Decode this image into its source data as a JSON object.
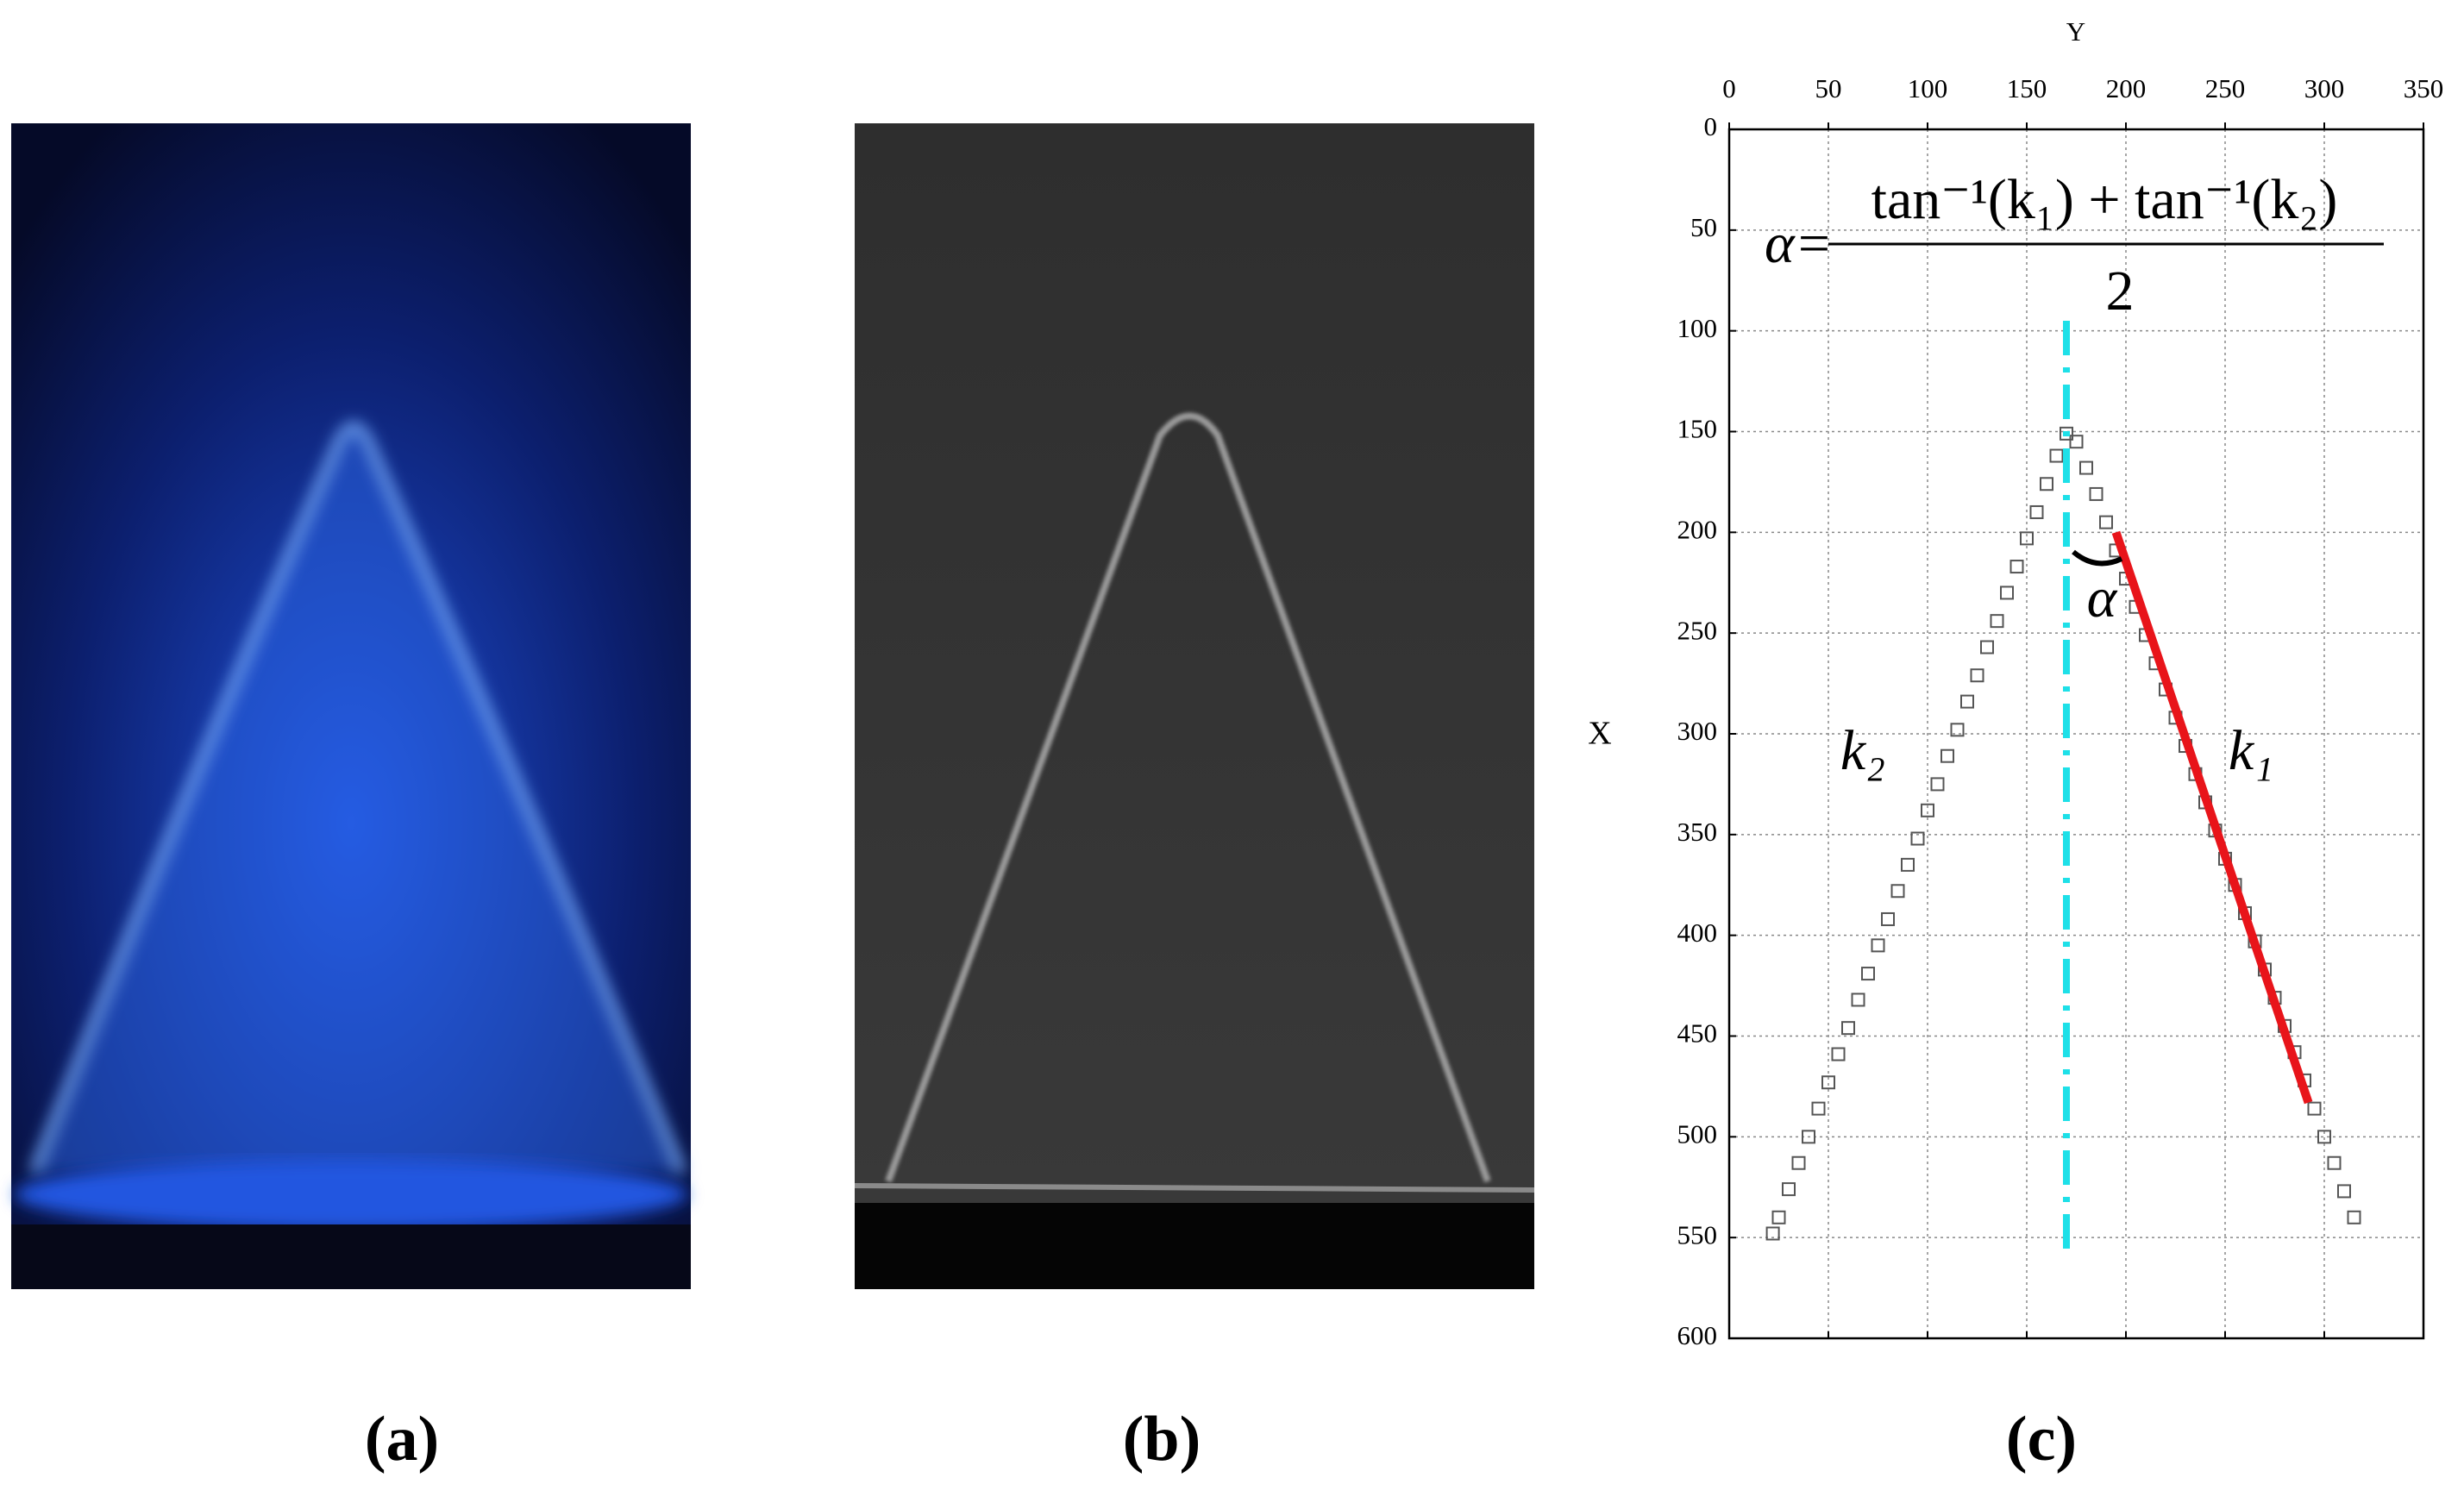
{
  "panel_labels": [
    "(a)",
    "(b)",
    "(c)"
  ],
  "chart_data": {
    "type": "scatter",
    "xlabel": "Y",
    "ylabel": "X",
    "formula": {
      "lhs": "α=",
      "numerator": "tan⁻¹(k₁) + tan⁻¹(k₂)",
      "denominator": "2"
    },
    "annotations": [
      "α",
      "k₂",
      "k₁"
    ],
    "xlim": [
      0,
      350
    ],
    "xticks": [
      0,
      50,
      100,
      150,
      200,
      250,
      300,
      350
    ],
    "ylim": [
      0,
      600
    ],
    "yticks": [
      0,
      50,
      100,
      150,
      200,
      250,
      300,
      350,
      400,
      450,
      500,
      550,
      600
    ],
    "y_inverted": true,
    "x_axis_top": true,
    "grid": true,
    "series": [
      {
        "mode": "markers",
        "marker": "square",
        "color": "#555555",
        "x": [
          22,
          25,
          30,
          35,
          40,
          45,
          50,
          55,
          60,
          65,
          70,
          75,
          80,
          85,
          90,
          95,
          100,
          105,
          110,
          115,
          120,
          125,
          130,
          135,
          140,
          145,
          150,
          155,
          160,
          165,
          170,
          175,
          180,
          185,
          190,
          195,
          200,
          205,
          210,
          215,
          220,
          225,
          230,
          235,
          240,
          245,
          250,
          255,
          260,
          265,
          270,
          275,
          280,
          285,
          290,
          295,
          300,
          305,
          310,
          315
        ],
        "values": [
          548,
          540,
          526,
          513,
          500,
          486,
          473,
          459,
          446,
          432,
          419,
          405,
          392,
          378,
          365,
          352,
          338,
          325,
          311,
          298,
          284,
          271,
          257,
          244,
          230,
          217,
          203,
          190,
          176,
          162,
          151,
          155,
          168,
          181,
          195,
          209,
          223,
          237,
          251,
          265,
          278,
          292,
          306,
          320,
          334,
          348,
          362,
          375,
          389,
          403,
          417,
          431,
          445,
          458,
          472,
          486,
          500,
          513,
          527,
          540
        ]
      },
      {
        "mode": "line",
        "color": "#e8141a",
        "x": [
          195,
          292
        ],
        "values": [
          200,
          483
        ]
      },
      {
        "mode": "dashdot",
        "color": "#1ee0e8",
        "x": [
          170,
          170
        ],
        "values": [
          95,
          560
        ]
      }
    ]
  }
}
